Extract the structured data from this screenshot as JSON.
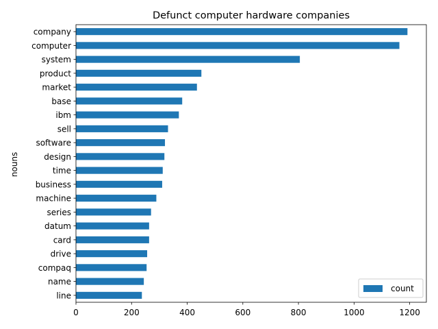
{
  "chart_data": {
    "type": "bar",
    "orientation": "horizontal",
    "title": "Defunct computer hardware companies",
    "xlabel": "",
    "ylabel": "nouns",
    "xlim": [
      0,
      1260
    ],
    "xticks": [
      0,
      200,
      400,
      600,
      800,
      1000,
      1200
    ],
    "grid": false,
    "legend_position": "lower-right",
    "bar_color": "#1f77b4",
    "categories": [
      "company",
      "computer",
      "system",
      "product",
      "market",
      "base",
      "ibm",
      "sell",
      "software",
      "design",
      "time",
      "business",
      "machine",
      "series",
      "datum",
      "card",
      "drive",
      "compaq",
      "name",
      "line"
    ],
    "series": [
      {
        "name": "count",
        "values": [
          1192,
          1163,
          805,
          451,
          435,
          382,
          370,
          331,
          320,
          318,
          312,
          310,
          289,
          270,
          263,
          263,
          256,
          254,
          244,
          237
        ]
      }
    ]
  }
}
